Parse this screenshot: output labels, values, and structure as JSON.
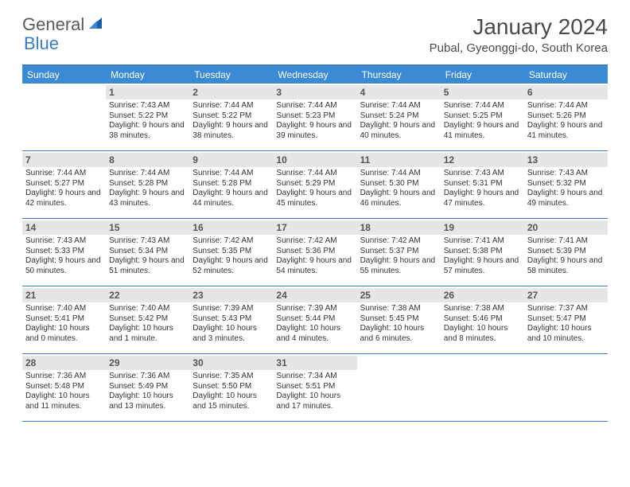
{
  "logo": {
    "text1": "General",
    "text2": "Blue"
  },
  "title": "January 2024",
  "location": "Pubal, Gyeonggi-do, South Korea",
  "colors": {
    "header_bg": "#3b8bd4",
    "header_text": "#ffffff",
    "border": "#3b7bbf",
    "daybar_bg": "#e6e6e6",
    "daybar_text": "#555555",
    "body_text": "#333333",
    "title_text": "#4a4a4a"
  },
  "day_headers": [
    "Sunday",
    "Monday",
    "Tuesday",
    "Wednesday",
    "Thursday",
    "Friday",
    "Saturday"
  ],
  "weeks": [
    [
      {
        "n": "",
        "sr": "",
        "ss": "",
        "dl": ""
      },
      {
        "n": "1",
        "sr": "Sunrise: 7:43 AM",
        "ss": "Sunset: 5:22 PM",
        "dl": "Daylight: 9 hours and 38 minutes."
      },
      {
        "n": "2",
        "sr": "Sunrise: 7:44 AM",
        "ss": "Sunset: 5:22 PM",
        "dl": "Daylight: 9 hours and 38 minutes."
      },
      {
        "n": "3",
        "sr": "Sunrise: 7:44 AM",
        "ss": "Sunset: 5:23 PM",
        "dl": "Daylight: 9 hours and 39 minutes."
      },
      {
        "n": "4",
        "sr": "Sunrise: 7:44 AM",
        "ss": "Sunset: 5:24 PM",
        "dl": "Daylight: 9 hours and 40 minutes."
      },
      {
        "n": "5",
        "sr": "Sunrise: 7:44 AM",
        "ss": "Sunset: 5:25 PM",
        "dl": "Daylight: 9 hours and 41 minutes."
      },
      {
        "n": "6",
        "sr": "Sunrise: 7:44 AM",
        "ss": "Sunset: 5:26 PM",
        "dl": "Daylight: 9 hours and 41 minutes."
      }
    ],
    [
      {
        "n": "7",
        "sr": "Sunrise: 7:44 AM",
        "ss": "Sunset: 5:27 PM",
        "dl": "Daylight: 9 hours and 42 minutes."
      },
      {
        "n": "8",
        "sr": "Sunrise: 7:44 AM",
        "ss": "Sunset: 5:28 PM",
        "dl": "Daylight: 9 hours and 43 minutes."
      },
      {
        "n": "9",
        "sr": "Sunrise: 7:44 AM",
        "ss": "Sunset: 5:28 PM",
        "dl": "Daylight: 9 hours and 44 minutes."
      },
      {
        "n": "10",
        "sr": "Sunrise: 7:44 AM",
        "ss": "Sunset: 5:29 PM",
        "dl": "Daylight: 9 hours and 45 minutes."
      },
      {
        "n": "11",
        "sr": "Sunrise: 7:44 AM",
        "ss": "Sunset: 5:30 PM",
        "dl": "Daylight: 9 hours and 46 minutes."
      },
      {
        "n": "12",
        "sr": "Sunrise: 7:43 AM",
        "ss": "Sunset: 5:31 PM",
        "dl": "Daylight: 9 hours and 47 minutes."
      },
      {
        "n": "13",
        "sr": "Sunrise: 7:43 AM",
        "ss": "Sunset: 5:32 PM",
        "dl": "Daylight: 9 hours and 49 minutes."
      }
    ],
    [
      {
        "n": "14",
        "sr": "Sunrise: 7:43 AM",
        "ss": "Sunset: 5:33 PM",
        "dl": "Daylight: 9 hours and 50 minutes."
      },
      {
        "n": "15",
        "sr": "Sunrise: 7:43 AM",
        "ss": "Sunset: 5:34 PM",
        "dl": "Daylight: 9 hours and 51 minutes."
      },
      {
        "n": "16",
        "sr": "Sunrise: 7:42 AM",
        "ss": "Sunset: 5:35 PM",
        "dl": "Daylight: 9 hours and 52 minutes."
      },
      {
        "n": "17",
        "sr": "Sunrise: 7:42 AM",
        "ss": "Sunset: 5:36 PM",
        "dl": "Daylight: 9 hours and 54 minutes."
      },
      {
        "n": "18",
        "sr": "Sunrise: 7:42 AM",
        "ss": "Sunset: 5:37 PM",
        "dl": "Daylight: 9 hours and 55 minutes."
      },
      {
        "n": "19",
        "sr": "Sunrise: 7:41 AM",
        "ss": "Sunset: 5:38 PM",
        "dl": "Daylight: 9 hours and 57 minutes."
      },
      {
        "n": "20",
        "sr": "Sunrise: 7:41 AM",
        "ss": "Sunset: 5:39 PM",
        "dl": "Daylight: 9 hours and 58 minutes."
      }
    ],
    [
      {
        "n": "21",
        "sr": "Sunrise: 7:40 AM",
        "ss": "Sunset: 5:41 PM",
        "dl": "Daylight: 10 hours and 0 minutes."
      },
      {
        "n": "22",
        "sr": "Sunrise: 7:40 AM",
        "ss": "Sunset: 5:42 PM",
        "dl": "Daylight: 10 hours and 1 minute."
      },
      {
        "n": "23",
        "sr": "Sunrise: 7:39 AM",
        "ss": "Sunset: 5:43 PM",
        "dl": "Daylight: 10 hours and 3 minutes."
      },
      {
        "n": "24",
        "sr": "Sunrise: 7:39 AM",
        "ss": "Sunset: 5:44 PM",
        "dl": "Daylight: 10 hours and 4 minutes."
      },
      {
        "n": "25",
        "sr": "Sunrise: 7:38 AM",
        "ss": "Sunset: 5:45 PM",
        "dl": "Daylight: 10 hours and 6 minutes."
      },
      {
        "n": "26",
        "sr": "Sunrise: 7:38 AM",
        "ss": "Sunset: 5:46 PM",
        "dl": "Daylight: 10 hours and 8 minutes."
      },
      {
        "n": "27",
        "sr": "Sunrise: 7:37 AM",
        "ss": "Sunset: 5:47 PM",
        "dl": "Daylight: 10 hours and 10 minutes."
      }
    ],
    [
      {
        "n": "28",
        "sr": "Sunrise: 7:36 AM",
        "ss": "Sunset: 5:48 PM",
        "dl": "Daylight: 10 hours and 11 minutes."
      },
      {
        "n": "29",
        "sr": "Sunrise: 7:36 AM",
        "ss": "Sunset: 5:49 PM",
        "dl": "Daylight: 10 hours and 13 minutes."
      },
      {
        "n": "30",
        "sr": "Sunrise: 7:35 AM",
        "ss": "Sunset: 5:50 PM",
        "dl": "Daylight: 10 hours and 15 minutes."
      },
      {
        "n": "31",
        "sr": "Sunrise: 7:34 AM",
        "ss": "Sunset: 5:51 PM",
        "dl": "Daylight: 10 hours and 17 minutes."
      },
      {
        "n": "",
        "sr": "",
        "ss": "",
        "dl": ""
      },
      {
        "n": "",
        "sr": "",
        "ss": "",
        "dl": ""
      },
      {
        "n": "",
        "sr": "",
        "ss": "",
        "dl": ""
      }
    ]
  ]
}
